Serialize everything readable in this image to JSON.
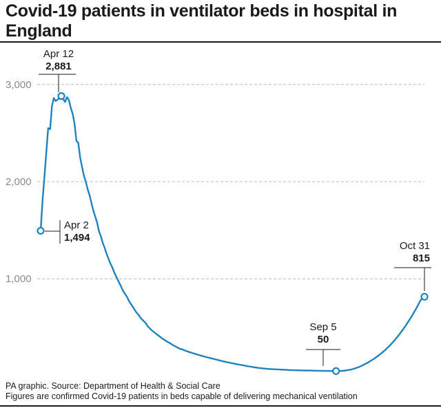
{
  "title": "Covid-19 patients in ventilator beds in hospital in England",
  "footer": {
    "source": "PA graphic. Source: Department of Health & Social Care",
    "note": "Figures are confirmed Covid-19 patients in beds capable of delivering mechanical ventilation"
  },
  "colors": {
    "line": "#1f82c0",
    "grid": "#bbbbbb",
    "text": "#1a1a1a",
    "tick": "#8a8a8a"
  },
  "chart_data": {
    "type": "line",
    "title": "Covid-19 patients in ventilator beds in hospital in England",
    "xlabel": "",
    "ylabel": "",
    "ylim": [
      0,
      3200
    ],
    "yticks": [
      1000,
      2000,
      3000
    ],
    "ytick_labels": [
      "1,000",
      "2,000",
      "3,000"
    ],
    "grid": true,
    "x_start": "2020-04-02",
    "x_end": "2020-10-31",
    "series": [
      {
        "values": [
          1494,
          1800,
          2050,
          2300,
          2550,
          2540,
          2780,
          2860,
          2830,
          2845,
          2860,
          2881,
          2850,
          2820,
          2870,
          2840,
          2760,
          2700,
          2600,
          2420,
          2400,
          2250,
          2150,
          2060,
          2000,
          1920,
          1860,
          1780,
          1700,
          1640,
          1580,
          1490,
          1440,
          1370,
          1320,
          1260,
          1210,
          1160,
          1120,
          1070,
          1030,
          990,
          950,
          910,
          870,
          840,
          810,
          770,
          740,
          710,
          680,
          650,
          630,
          600,
          580,
          560,
          540,
          510,
          490,
          470,
          455,
          440,
          425,
          410,
          395,
          380,
          370,
          355,
          345,
          335,
          320,
          310,
          300,
          290,
          280,
          275,
          268,
          260,
          252,
          246,
          240,
          234,
          228,
          222,
          216,
          210,
          205,
          200,
          195,
          190,
          185,
          180,
          175,
          170,
          165,
          160,
          155,
          150,
          146,
          142,
          138,
          134,
          130,
          126,
          122,
          118,
          115,
          112,
          108,
          104,
          100,
          97,
          94,
          91,
          88,
          85,
          82,
          80,
          78,
          76,
          74,
          72,
          71,
          70,
          69,
          68,
          67,
          66,
          65,
          64,
          63,
          62,
          61,
          60,
          60,
          59,
          58,
          58,
          57,
          57,
          56,
          56,
          55,
          55,
          55,
          54,
          54,
          54,
          53,
          53,
          53,
          52,
          52,
          52,
          51,
          51,
          51,
          50,
          50,
          51,
          52,
          54,
          56,
          59,
          62,
          66,
          71,
          77,
          84,
          91,
          99,
          108,
          118,
          128,
          139,
          150,
          162,
          175,
          188,
          202,
          217,
          232,
          248,
          265,
          283,
          302,
          322,
          343,
          365,
          388,
          412,
          437,
          463,
          490,
          518,
          547,
          577,
          608,
          640,
          673,
          708,
          744,
          782,
          800,
          815
        ]
      }
    ],
    "annotations": [
      {
        "date": "Apr 12",
        "value": "2,881"
      },
      {
        "date": "Apr 2",
        "value": "1,494"
      },
      {
        "date": "Sep 5",
        "value": "50"
      },
      {
        "date": "Oct 31",
        "value": "815"
      }
    ]
  }
}
